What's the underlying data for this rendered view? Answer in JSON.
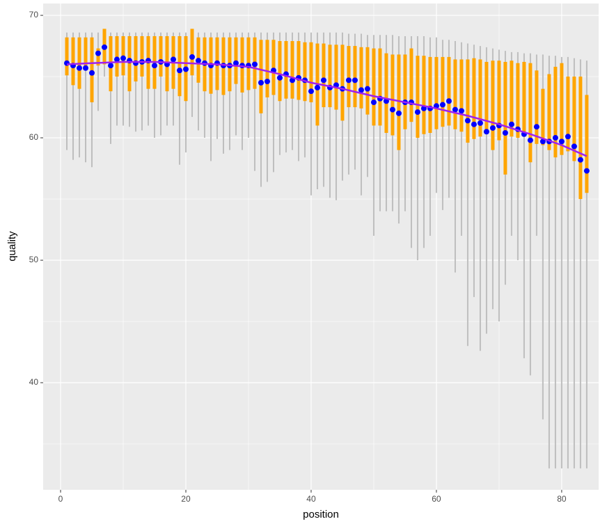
{
  "chart_data": {
    "type": "boxrange",
    "x_label": "position",
    "y_label": "quality",
    "xlim": [
      -2.78,
      85.9
    ],
    "ylim": [
      31.25,
      70.97
    ],
    "xticks": [
      0,
      20,
      40,
      60,
      80
    ],
    "yticks": [
      40,
      50,
      60,
      70
    ],
    "xminor": [
      10,
      30,
      50,
      70
    ],
    "yminor": [
      35,
      45,
      55,
      65
    ],
    "x": [
      1,
      2,
      3,
      4,
      5,
      6,
      7,
      8,
      9,
      10,
      11,
      12,
      13,
      14,
      15,
      16,
      17,
      18,
      19,
      20,
      21,
      22,
      23,
      24,
      25,
      26,
      27,
      28,
      29,
      30,
      31,
      32,
      33,
      34,
      35,
      36,
      37,
      38,
      39,
      40,
      41,
      42,
      43,
      44,
      45,
      46,
      47,
      48,
      49,
      50,
      51,
      52,
      53,
      54,
      55,
      56,
      57,
      58,
      59,
      60,
      61,
      62,
      63,
      64,
      65,
      66,
      67,
      68,
      69,
      70,
      71,
      72,
      73,
      74,
      75,
      76,
      77,
      78,
      79,
      80,
      81,
      82,
      83,
      84
    ],
    "lower": [
      59.0,
      58.2,
      58.4,
      58.0,
      57.6,
      62.2,
      65.0,
      59.5,
      61.0,
      61.0,
      60.9,
      60.5,
      60.6,
      61.0,
      60.0,
      60.2,
      61.0,
      61.0,
      57.8,
      58.8,
      61.7,
      60.6,
      60.0,
      58.1,
      59.9,
      58.7,
      59.0,
      60.2,
      59.0,
      60.0,
      57.3,
      56.0,
      56.4,
      57.2,
      58.6,
      58.8,
      59.0,
      58.1,
      58.4,
      55.3,
      55.8,
      56.0,
      55.1,
      54.9,
      56.5,
      57.0,
      57.4,
      55.3,
      56.8,
      52.0,
      54.0,
      54.0,
      54.0,
      53.0,
      54.0,
      51.0,
      50.0,
      51.0,
      52.0,
      55.5,
      54.1,
      55.1,
      49.0,
      52.0,
      43.0,
      47.0,
      42.6,
      44.0,
      46.0,
      45.0,
      48.0,
      52.0,
      50.0,
      42.0,
      40.6,
      52.0,
      37.0,
      33.0,
      33.0,
      33.0,
      33.0,
      33.0,
      33.0,
      33.0
    ],
    "upper": [
      68.6,
      68.6,
      68.6,
      68.6,
      68.6,
      68.6,
      68.6,
      68.6,
      68.6,
      68.6,
      68.6,
      68.6,
      68.6,
      68.6,
      68.6,
      68.6,
      68.6,
      68.6,
      68.6,
      68.6,
      68.6,
      68.6,
      68.6,
      68.6,
      68.6,
      68.6,
      68.6,
      68.6,
      68.6,
      68.6,
      68.6,
      68.6,
      68.6,
      68.6,
      68.6,
      68.6,
      68.6,
      68.6,
      68.6,
      68.6,
      68.6,
      68.6,
      68.6,
      68.6,
      68.6,
      68.5,
      68.5,
      68.5,
      68.4,
      68.4,
      68.4,
      68.4,
      68.4,
      68.3,
      68.3,
      68.3,
      68.3,
      68.3,
      68.2,
      68.2,
      68.0,
      68.0,
      67.9,
      67.8,
      67.7,
      67.6,
      67.5,
      67.4,
      67.3,
      67.2,
      67.1,
      67.0,
      67.0,
      66.9,
      66.9,
      66.8,
      66.8,
      66.7,
      66.7,
      66.6,
      66.6,
      66.5,
      66.4,
      66.3
    ],
    "q1": [
      65.1,
      64.3,
      64.0,
      65.5,
      62.9,
      65.9,
      66.0,
      63.8,
      65.0,
      65.1,
      63.8,
      64.6,
      65.0,
      64.0,
      64.0,
      65.0,
      63.8,
      64.0,
      63.4,
      63.0,
      65.1,
      64.5,
      63.8,
      63.6,
      63.9,
      63.5,
      63.8,
      64.4,
      63.7,
      63.9,
      64.0,
      62.0,
      63.3,
      63.5,
      63.0,
      63.2,
      63.2,
      63.1,
      63.0,
      62.9,
      61.0,
      62.5,
      62.5,
      62.3,
      61.4,
      62.5,
      62.5,
      62.4,
      61.9,
      61.0,
      61.0,
      60.4,
      60.2,
      59.0,
      60.7,
      61.3,
      60.0,
      60.3,
      60.4,
      60.7,
      60.9,
      61.0,
      60.7,
      60.5,
      59.6,
      59.9,
      60.1,
      60.3,
      59.0,
      59.8,
      57.0,
      60.1,
      60.0,
      60.1,
      58.0,
      59.5,
      59.4,
      59.0,
      58.4,
      58.6,
      58.9,
      58.1,
      55.0,
      55.5
    ],
    "q3": [
      68.2,
      68.2,
      68.2,
      68.2,
      68.2,
      67.3,
      68.9,
      68.3,
      68.3,
      68.3,
      68.3,
      68.3,
      68.3,
      68.3,
      68.3,
      68.3,
      68.3,
      68.3,
      68.3,
      68.3,
      68.9,
      68.2,
      68.2,
      68.2,
      68.2,
      68.2,
      68.2,
      68.2,
      68.2,
      68.2,
      68.2,
      68.0,
      68.0,
      68.0,
      67.9,
      67.9,
      67.9,
      67.9,
      67.8,
      67.8,
      67.7,
      67.7,
      67.6,
      67.6,
      67.6,
      67.5,
      67.5,
      67.4,
      67.4,
      67.3,
      67.3,
      66.9,
      66.8,
      66.8,
      66.8,
      67.3,
      66.7,
      66.7,
      66.6,
      66.6,
      66.6,
      66.6,
      66.4,
      66.4,
      66.4,
      66.5,
      66.4,
      66.2,
      66.3,
      66.3,
      66.2,
      66.3,
      66.1,
      66.2,
      66.1,
      65.5,
      64.0,
      65.2,
      65.8,
      66.1,
      65.0,
      65.0,
      65.0,
      63.5
    ],
    "mean": [
      66.1,
      65.9,
      65.7,
      65.7,
      65.3,
      66.9,
      67.4,
      65.9,
      66.4,
      66.5,
      66.3,
      66.1,
      66.2,
      66.3,
      65.9,
      66.2,
      66.0,
      66.4,
      65.5,
      65.6,
      66.6,
      66.3,
      66.1,
      65.9,
      66.1,
      65.9,
      65.9,
      66.1,
      65.9,
      65.9,
      66.0,
      64.5,
      64.6,
      65.5,
      64.9,
      65.2,
      64.7,
      64.9,
      64.7,
      63.8,
      64.1,
      64.7,
      64.1,
      64.3,
      64.0,
      64.7,
      64.7,
      63.9,
      64.0,
      62.9,
      63.2,
      63.0,
      62.3,
      62.0,
      62.9,
      62.9,
      62.1,
      62.4,
      62.4,
      62.6,
      62.7,
      63.0,
      62.3,
      62.2,
      61.4,
      61.1,
      61.2,
      60.5,
      60.8,
      61.0,
      60.4,
      61.1,
      60.7,
      60.3,
      59.8,
      60.9,
      59.7,
      59.7,
      60.0,
      59.7,
      60.1,
      59.3,
      58.2,
      57.3
    ],
    "smooth": {
      "x": [
        1,
        5,
        10,
        15,
        20,
        25,
        30,
        35,
        40,
        45,
        50,
        55,
        60,
        65,
        70,
        75,
        80,
        84
      ],
      "values": [
        66.0,
        66.1,
        66.2,
        66.2,
        66.1,
        66.0,
        65.8,
        65.2,
        64.5,
        64.0,
        63.4,
        62.9,
        62.4,
        61.8,
        61.1,
        60.3,
        59.4,
        58.5
      ]
    },
    "colors": {
      "range": "#bebebe",
      "box": "#ffa500",
      "mean": "#0000ff",
      "smooth": "#a020f0"
    }
  }
}
